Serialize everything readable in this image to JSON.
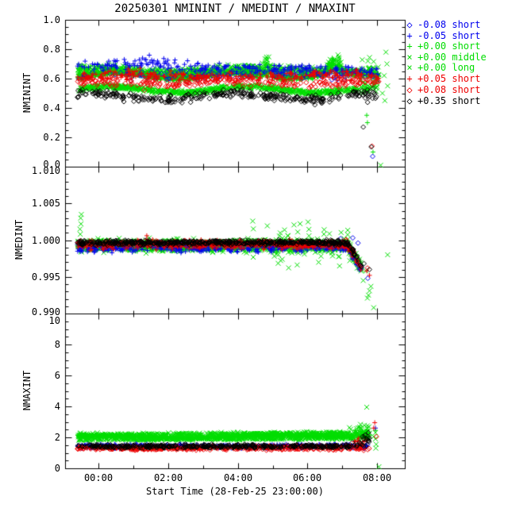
{
  "title": "20250301 NMININT / NMEDINT / NMAXINT",
  "colors": {
    "blue": "#0000ee",
    "green": "#00dd00",
    "red": "#ee0000",
    "black": "#000000",
    "axis": "#000000",
    "background": "#ffffff"
  },
  "x_axis": {
    "label": "Start Time (28-Feb-25 23:00:00)",
    "tick_labels": [
      "00:00",
      "02:00",
      "04:00",
      "06:00",
      "08:00"
    ],
    "tick_hours": [
      0,
      2,
      4,
      6,
      8
    ],
    "minor_tick_hours": [
      1,
      3,
      5,
      7
    ],
    "range_hours": [
      -0.96,
      8.79
    ]
  },
  "panels": [
    {
      "name": "NMININT",
      "ylabel": "NMININT",
      "yrange": [
        0,
        1
      ],
      "ytick_labels": [
        "1.0",
        "0.8",
        "0.6",
        "0.4",
        "0.2",
        "0.0"
      ],
      "ytick_values": [
        1.0,
        0.8,
        0.6,
        0.4,
        0.2,
        0.0
      ],
      "minor_step": 0.05
    },
    {
      "name": "NMEDINT",
      "ylabel": "NMEDINT",
      "yrange": [
        0.99,
        1.01
      ],
      "ytick_labels": [
        "1.010",
        "1.005",
        "1.000",
        "0.995",
        "0.990"
      ],
      "ytick_values": [
        1.01,
        1.005,
        1.0,
        0.995,
        0.99
      ],
      "minor_step": 0.001
    },
    {
      "name": "NMAXINT",
      "ylabel": "NMAXINT",
      "yrange": [
        0,
        10
      ],
      "ytick_labels": [
        "10",
        "8",
        "6",
        "4",
        "2",
        "0"
      ],
      "ytick_values": [
        10,
        8,
        6,
        4,
        2,
        0
      ],
      "minor_step": 0.5
    }
  ],
  "legend": {
    "items": [
      {
        "symbol": "◇",
        "marker": "diamond",
        "color": "#0000ee",
        "label": "-0.08 short"
      },
      {
        "symbol": "+",
        "marker": "plus",
        "color": "#0000ee",
        "label": "-0.05 short"
      },
      {
        "symbol": "+",
        "marker": "plus",
        "color": "#00dd00",
        "label": "+0.00 short"
      },
      {
        "symbol": "×",
        "marker": "cross",
        "color": "#00dd00",
        "label": "+0.00 middle"
      },
      {
        "symbol": "×",
        "marker": "cross",
        "color": "#00dd00",
        "label": "+0.00 long"
      },
      {
        "symbol": "+",
        "marker": "plus",
        "color": "#ee0000",
        "label": "+0.05 short"
      },
      {
        "symbol": "◇",
        "marker": "diamond",
        "color": "#ee0000",
        "label": "+0.08 short"
      },
      {
        "symbol": "◇",
        "marker": "diamond",
        "color": "#000000",
        "label": "+0.35 short"
      }
    ]
  },
  "chart_data": {
    "type": "scatter",
    "seed": 1337,
    "x_unit": "hours relative to 2025-03-01 00:00",
    "x_range": [
      -0.96,
      8.79
    ],
    "panels": [
      {
        "name": "NMININT",
        "yrange": [
          0,
          1
        ],
        "series": [
          {
            "name": "+0.00 short",
            "marker": "plus",
            "color": "#00dd00",
            "band": {
              "x0": -0.6,
              "x1": 8.05,
              "n": 1100,
              "base": 0.625,
              "spread": 0.02,
              "wig": [
                0.018,
                1.9,
                0.5
              ],
              "spikes": [
                [
                  4.85,
                  0.18,
                  0.11
                ],
                [
                  6.75,
                  0.32,
                  0.13
                ]
              ]
            },
            "points": [
              [
                7.7,
                0.35
              ],
              [
                7.72,
                0.3
              ],
              [
                7.88,
                0.1
              ]
            ]
          },
          {
            "name": "+0.00 middle",
            "marker": "cross",
            "color": "#00dd00",
            "band": {
              "x0": -0.6,
              "x1": 8.05,
              "n": 750,
              "base": 0.655,
              "spread": 0.028,
              "wig": [
                0.012,
                1.3,
                2.0
              ],
              "spikes": [
                [
                  4.85,
                  0.18,
                  0.1
                ],
                [
                  6.8,
                  0.32,
                  0.14
                ]
              ],
              "widen": [
                [
                  7.5,
                  8.05,
                  0.09,
                  0.6,
                  0
                ]
              ]
            },
            "points": [
              [
                8.1,
                0.01
              ],
              [
                8.25,
                0.78
              ],
              [
                8.2,
                0.62
              ],
              [
                8.3,
                0.55
              ],
              [
                8.15,
                0.5
              ],
              [
                8.22,
                0.45
              ],
              [
                8.28,
                0.7
              ]
            ]
          },
          {
            "name": "+0.00 long",
            "marker": "cross",
            "color": "#00dd00",
            "band": {
              "x0": -0.6,
              "x1": 8.0,
              "n": 700,
              "base": 0.525,
              "spread": 0.016,
              "wig": [
                0.02,
                1.6,
                1.0
              ],
              "widen": [
                [
                  7.4,
                  8.0,
                  0.05,
                  0.5,
                  0
                ]
              ]
            },
            "points": []
          },
          {
            "name": "-0.05 short",
            "marker": "plus",
            "color": "#0000ee",
            "band": {
              "x0": -0.6,
              "x1": 8.05,
              "n": 230,
              "base": 0.7,
              "spread": 0.032,
              "trend": -0.006,
              "spikes": [
                [
                  1.5,
                  0.9,
                  0.05
                ]
              ]
            },
            "points": []
          },
          {
            "name": "-0.08 short",
            "marker": "diamond",
            "color": "#0000ee",
            "band": {
              "x0": -0.6,
              "x1": 8.05,
              "n": 120,
              "base": 0.625,
              "spread": 0.035
            },
            "points": [
              [
                7.87,
                0.07
              ]
            ]
          },
          {
            "name": "+0.05 short",
            "marker": "plus",
            "color": "#ee0000",
            "band": {
              "x0": -0.6,
              "x1": 8.05,
              "n": 260,
              "base": 0.615,
              "spread": 0.033,
              "wig": [
                0.012,
                1.1,
                0.3
              ]
            },
            "points": []
          },
          {
            "name": "+0.08 short",
            "marker": "diamond",
            "color": "#ee0000",
            "band": {
              "x0": -0.6,
              "x1": 8.05,
              "n": 230,
              "base": 0.572,
              "spread": 0.03,
              "wig": [
                0.012,
                1.4,
                2.2
              ]
            },
            "points": [
              [
                7.85,
                0.14
              ]
            ]
          },
          {
            "name": "+0.35 short",
            "marker": "diamond",
            "color": "#000000",
            "band": {
              "x0": -0.6,
              "x1": 8.0,
              "n": 330,
              "base": 0.478,
              "spread": 0.028,
              "wig": [
                0.022,
                1.5,
                2.0
              ],
              "widen": [
                [
                  7.3,
                  8.0,
                  0.05,
                  0.5,
                  0
                ]
              ]
            },
            "points": [
              [
                7.83,
                0.135
              ],
              [
                7.6,
                0.27
              ]
            ]
          }
        ]
      },
      {
        "name": "NMEDINT",
        "yrange": [
          0.99,
          1.01
        ],
        "series": [
          {
            "name": "+0.00 short",
            "marker": "plus",
            "color": "#00dd00",
            "band": {
              "x0": -0.6,
              "x1": 7.55,
              "n": 900,
              "base": 0.9992,
              "spread": 0.00055,
              "tail": [
                7.15,
                -0.008
              ]
            },
            "points": []
          },
          {
            "name": "+0.00 middle",
            "marker": "cross",
            "color": "#00dd00",
            "band": {
              "x0": -0.6,
              "x1": 7.55,
              "n": 500,
              "base": 0.9996,
              "spread": 0.0005,
              "tail": [
                7.15,
                -0.008
              ],
              "widen": [
                [
                  4.3,
                  7.3,
                  0.0022,
                  0.25,
                  0.0008
                ]
              ]
            },
            "points": [
              [
                -0.52,
                1.0008
              ],
              [
                -0.53,
                1.0015
              ],
              [
                -0.5,
                1.0022
              ],
              [
                -0.51,
                1.003
              ],
              [
                -0.49,
                1.0035
              ],
              [
                8.3,
                0.998
              ],
              [
                7.75,
                0.9925
              ],
              [
                7.82,
                0.9937
              ],
              [
                7.6,
                0.9945
              ],
              [
                7.68,
                0.9958
              ],
              [
                7.72,
                0.9921
              ],
              [
                7.9,
                0.9908
              ]
            ]
          },
          {
            "name": "+0.00 long",
            "marker": "cross",
            "color": "#00dd00",
            "band": {
              "x0": -0.6,
              "x1": 7.55,
              "n": 450,
              "base": 0.999,
              "spread": 0.0006,
              "tail": [
                7.15,
                -0.008
              ],
              "widen": [
                [
                  4.3,
                  7.3,
                  0.0018,
                  0.2,
                  -0.0006
                ]
              ]
            },
            "points": [
              [
                7.78,
                0.9931
              ]
            ]
          },
          {
            "name": "-0.05 short",
            "marker": "plus",
            "color": "#0000ee",
            "band": {
              "x0": -0.6,
              "x1": 7.55,
              "n": 260,
              "base": 0.99885,
              "spread": 0.00045,
              "tail": [
                7.15,
                -0.008
              ]
            },
            "points": []
          },
          {
            "name": "-0.08 short",
            "marker": "diamond",
            "color": "#0000ee",
            "band": {
              "x0": -0.6,
              "x1": 7.55,
              "n": 110,
              "base": 0.9993,
              "spread": 0.0004,
              "tail": [
                7.15,
                -0.008
              ]
            },
            "points": [
              [
                6.95,
                1.0002
              ],
              [
                7.3,
                1.0003
              ],
              [
                7.45,
                0.9996
              ],
              [
                7.73,
                0.9948
              ]
            ]
          },
          {
            "name": "+0.05 short",
            "marker": "plus",
            "color": "#ee0000",
            "band": {
              "x0": -0.6,
              "x1": 7.55,
              "n": 350,
              "base": 0.99935,
              "spread": 0.00055,
              "spikes": [
                [
                  1.45,
                  0.4,
                  0.0007
                ]
              ],
              "tail": [
                7.15,
                -0.008
              ]
            },
            "points": [
              [
                7.7,
                0.9958
              ],
              [
                7.78,
                0.9952
              ]
            ]
          },
          {
            "name": "+0.08 short",
            "marker": "diamond",
            "color": "#ee0000",
            "band": {
              "x0": -0.6,
              "x1": 7.55,
              "n": 240,
              "base": 0.9995,
              "spread": 0.0004,
              "tail": [
                7.15,
                -0.008
              ]
            },
            "points": [
              [
                7.72,
                0.9962
              ]
            ]
          },
          {
            "name": "+0.35 short",
            "marker": "diamond",
            "color": "#000000",
            "band": {
              "x0": -0.6,
              "x1": 7.55,
              "n": 520,
              "base": 0.99965,
              "spread": 0.00032,
              "tail": [
                7.15,
                -0.008
              ]
            },
            "points": [
              [
                7.78,
                0.996
              ],
              [
                7.62,
                0.9968
              ]
            ]
          }
        ]
      },
      {
        "name": "NMAXINT",
        "yrange": [
          0,
          10
        ],
        "series": [
          {
            "name": "+0.00 short",
            "marker": "plus",
            "color": "#00dd00",
            "band": {
              "x0": -0.6,
              "x1": 7.78,
              "n": 850,
              "base": 2.0,
              "spread": 0.1,
              "wig": [
                0.07,
                1.2,
                1.5
              ],
              "trend": 0.012,
              "widen": [
                [
                  7.3,
                  7.78,
                  0.25,
                  0.5,
                  0.2
                ]
              ]
            },
            "points": [
              [
                7.95,
                2.45
              ]
            ]
          },
          {
            "name": "+0.00 middle",
            "marker": "cross",
            "color": "#00dd00",
            "band": {
              "x0": -0.6,
              "x1": 7.78,
              "n": 600,
              "base": 2.12,
              "spread": 0.13,
              "trend": 0.015,
              "widen": [
                [
                  7.2,
                  7.78,
                  0.35,
                  0.5,
                  0.3
                ]
              ]
            },
            "points": [
              [
                7.7,
                3.95
              ],
              [
                7.95,
                2.3
              ],
              [
                7.95,
                1.9
              ],
              [
                7.97,
                1.55
              ],
              [
                7.96,
                1.3
              ],
              [
                8.05,
                0.1
              ],
              [
                7.9,
                2.05
              ]
            ]
          },
          {
            "name": "+0.00 long",
            "marker": "cross",
            "color": "#00dd00",
            "band": {
              "x0": -0.6,
              "x1": 7.78,
              "n": 500,
              "base": 1.88,
              "spread": 0.1,
              "trend": 0.01,
              "widen": [
                [
                  7.2,
                  7.78,
                  0.2,
                  0.4,
                  0.1
                ]
              ]
            },
            "points": []
          },
          {
            "name": "-0.05 short",
            "marker": "plus",
            "color": "#0000ee",
            "band": {
              "x0": -0.6,
              "x1": 7.78,
              "n": 280,
              "base": 1.45,
              "spread": 0.11
            },
            "points": [
              [
                7.95,
                2.6
              ]
            ]
          },
          {
            "name": "-0.08 short",
            "marker": "diamond",
            "color": "#0000ee",
            "band": {
              "x0": -0.6,
              "x1": 7.78,
              "n": 140,
              "base": 1.38,
              "spread": 0.1
            },
            "points": []
          },
          {
            "name": "+0.05 short",
            "marker": "plus",
            "color": "#ee0000",
            "band": {
              "x0": -0.6,
              "x1": 7.78,
              "n": 300,
              "base": 1.32,
              "spread": 0.11,
              "trend": 0.01,
              "widen": [
                [
                  7.3,
                  7.78,
                  0.3,
                  0.6,
                  0.3
                ]
              ]
            },
            "points": [
              [
                7.93,
                2.95
              ],
              [
                7.9,
                2.6
              ]
            ]
          },
          {
            "name": "+0.08 short",
            "marker": "diamond",
            "color": "#ee0000",
            "band": {
              "x0": -0.6,
              "x1": 7.78,
              "n": 240,
              "base": 1.27,
              "spread": 0.1
            },
            "points": [
              [
                7.98,
                2.05
              ]
            ]
          },
          {
            "name": "+0.35 short",
            "marker": "diamond",
            "color": "#000000",
            "band": {
              "x0": -0.6,
              "x1": 7.78,
              "n": 400,
              "base": 1.42,
              "spread": 0.11,
              "widen": [
                [
                  7.2,
                  7.78,
                  0.4,
                  0.6,
                  0.35
                ]
              ]
            },
            "points": [
              [
                7.75,
                2.3
              ],
              [
                7.65,
                2.15
              ]
            ]
          }
        ]
      }
    ]
  }
}
